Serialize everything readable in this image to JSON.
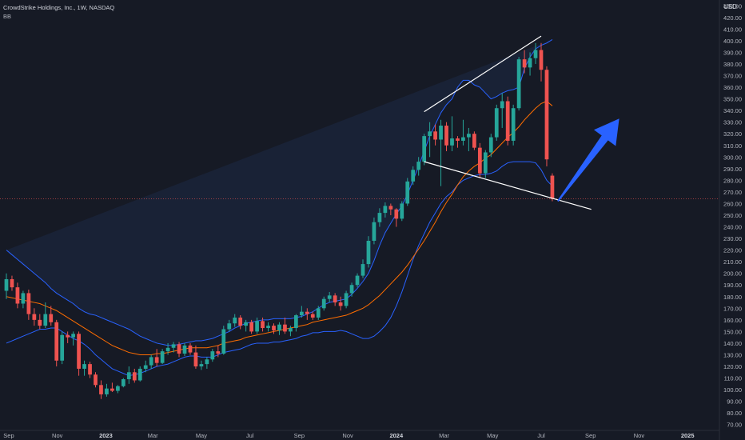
{
  "header": {
    "title": "CrowdStrike Holdings, Inc., 1W, NASDAQ",
    "indicator": "BB",
    "currency": "USD"
  },
  "colors": {
    "background": "#161a25",
    "up": "#26a69a",
    "down": "#ef5350",
    "band": "#2962ff",
    "basis": "#ff6d00",
    "band_fill": "#1e2a45",
    "trendline": "#ffffff",
    "arrow": "#2962ff",
    "price_line": "#ef5350"
  },
  "chart_data": {
    "type": "candlestick",
    "x_range": [
      "2022-08-29",
      "2025-02-10"
    ],
    "y_range": [
      65,
      435
    ],
    "y_ticks": [
      70,
      80,
      90,
      100,
      110,
      120,
      130,
      140,
      150,
      160,
      170,
      180,
      190,
      200,
      210,
      220,
      230,
      240,
      250,
      260,
      270,
      280,
      290,
      300,
      310,
      320,
      330,
      340,
      350,
      360,
      370,
      380,
      390,
      400,
      410,
      420,
      430
    ],
    "y_tick_labels": [
      "70.00",
      "80.00",
      "90.00",
      "100.00",
      "110.00",
      "120.00",
      "130.00",
      "140.00",
      "150.00",
      "160.00",
      "170.00",
      "180.00",
      "190.00",
      "200.00",
      "210.00",
      "220.00",
      "230.00",
      "240.00",
      "250.00",
      "260.00",
      "270.00",
      "280.00",
      "290.00",
      "300.00",
      "310.00",
      "320.00",
      "330.00",
      "340.00",
      "350.00",
      "360.00",
      "370.00",
      "380.00",
      "390.00",
      "400.00",
      "410.00",
      "420.00",
      "430.00"
    ],
    "x_ticks": [
      {
        "date": "2022-09-01",
        "label": "Sep",
        "bold": false
      },
      {
        "date": "2022-11-01",
        "label": "Nov",
        "bold": false
      },
      {
        "date": "2023-01-01",
        "label": "2023",
        "bold": true
      },
      {
        "date": "2023-03-01",
        "label": "Mar",
        "bold": false
      },
      {
        "date": "2023-05-01",
        "label": "May",
        "bold": false
      },
      {
        "date": "2023-07-01",
        "label": "Jul",
        "bold": false
      },
      {
        "date": "2023-09-01",
        "label": "Sep",
        "bold": false
      },
      {
        "date": "2023-11-01",
        "label": "Nov",
        "bold": false
      },
      {
        "date": "2024-01-01",
        "label": "2024",
        "bold": true
      },
      {
        "date": "2024-03-01",
        "label": "Mar",
        "bold": false
      },
      {
        "date": "2024-05-01",
        "label": "May",
        "bold": false
      },
      {
        "date": "2024-07-01",
        "label": "Jul",
        "bold": false
      },
      {
        "date": "2024-09-01",
        "label": "Sep",
        "bold": false
      },
      {
        "date": "2024-11-01",
        "label": "Nov",
        "bold": false
      },
      {
        "date": "2025-01-01",
        "label": "2025",
        "bold": true
      }
    ],
    "price_line": 264,
    "candles": [
      {
        "d": "2022-08-29",
        "o": 185,
        "h": 200,
        "l": 178,
        "c": 195
      },
      {
        "d": "2022-09-05",
        "o": 195,
        "h": 198,
        "l": 185,
        "c": 188
      },
      {
        "d": "2022-09-12",
        "o": 188,
        "h": 192,
        "l": 170,
        "c": 174
      },
      {
        "d": "2022-09-19",
        "o": 174,
        "h": 185,
        "l": 170,
        "c": 183
      },
      {
        "d": "2022-09-26",
        "o": 183,
        "h": 186,
        "l": 160,
        "c": 165
      },
      {
        "d": "2022-10-03",
        "o": 165,
        "h": 170,
        "l": 155,
        "c": 160
      },
      {
        "d": "2022-10-10",
        "o": 160,
        "h": 165,
        "l": 152,
        "c": 155
      },
      {
        "d": "2022-10-17",
        "o": 155,
        "h": 175,
        "l": 153,
        "c": 165
      },
      {
        "d": "2022-10-24",
        "o": 165,
        "h": 172,
        "l": 155,
        "c": 158
      },
      {
        "d": "2022-10-31",
        "o": 158,
        "h": 160,
        "l": 120,
        "c": 125
      },
      {
        "d": "2022-11-07",
        "o": 125,
        "h": 150,
        "l": 122,
        "c": 147
      },
      {
        "d": "2022-11-14",
        "o": 147,
        "h": 150,
        "l": 140,
        "c": 145
      },
      {
        "d": "2022-11-21",
        "o": 145,
        "h": 150,
        "l": 138,
        "c": 148
      },
      {
        "d": "2022-11-28",
        "o": 148,
        "h": 150,
        "l": 112,
        "c": 118
      },
      {
        "d": "2022-12-05",
        "o": 118,
        "h": 125,
        "l": 112,
        "c": 122
      },
      {
        "d": "2022-12-12",
        "o": 122,
        "h": 124,
        "l": 110,
        "c": 113
      },
      {
        "d": "2022-12-19",
        "o": 113,
        "h": 115,
        "l": 102,
        "c": 104
      },
      {
        "d": "2022-12-26",
        "o": 104,
        "h": 108,
        "l": 92,
        "c": 96
      },
      {
        "d": "2023-01-02",
        "o": 96,
        "h": 105,
        "l": 94,
        "c": 101
      },
      {
        "d": "2023-01-09",
        "o": 101,
        "h": 106,
        "l": 98,
        "c": 99
      },
      {
        "d": "2023-01-16",
        "o": 99,
        "h": 104,
        "l": 97,
        "c": 103
      },
      {
        "d": "2023-01-23",
        "o": 103,
        "h": 110,
        "l": 102,
        "c": 109
      },
      {
        "d": "2023-01-30",
        "o": 109,
        "h": 120,
        "l": 105,
        "c": 115
      },
      {
        "d": "2023-02-06",
        "o": 115,
        "h": 118,
        "l": 106,
        "c": 108
      },
      {
        "d": "2023-02-13",
        "o": 108,
        "h": 120,
        "l": 107,
        "c": 118
      },
      {
        "d": "2023-02-20",
        "o": 118,
        "h": 125,
        "l": 115,
        "c": 121
      },
      {
        "d": "2023-02-27",
        "o": 121,
        "h": 130,
        "l": 118,
        "c": 128
      },
      {
        "d": "2023-03-06",
        "o": 128,
        "h": 135,
        "l": 120,
        "c": 123
      },
      {
        "d": "2023-03-13",
        "o": 123,
        "h": 135,
        "l": 122,
        "c": 133
      },
      {
        "d": "2023-03-20",
        "o": 133,
        "h": 140,
        "l": 130,
        "c": 136
      },
      {
        "d": "2023-03-27",
        "o": 136,
        "h": 141,
        "l": 132,
        "c": 139
      },
      {
        "d": "2023-04-03",
        "o": 139,
        "h": 141,
        "l": 128,
        "c": 131
      },
      {
        "d": "2023-04-10",
        "o": 131,
        "h": 140,
        "l": 129,
        "c": 138
      },
      {
        "d": "2023-04-17",
        "o": 138,
        "h": 140,
        "l": 130,
        "c": 132
      },
      {
        "d": "2023-04-24",
        "o": 132,
        "h": 138,
        "l": 118,
        "c": 120
      },
      {
        "d": "2023-05-01",
        "o": 120,
        "h": 125,
        "l": 117,
        "c": 122
      },
      {
        "d": "2023-05-08",
        "o": 122,
        "h": 128,
        "l": 118,
        "c": 126
      },
      {
        "d": "2023-05-15",
        "o": 126,
        "h": 135,
        "l": 124,
        "c": 133
      },
      {
        "d": "2023-05-22",
        "o": 133,
        "h": 138,
        "l": 128,
        "c": 131
      },
      {
        "d": "2023-05-29",
        "o": 131,
        "h": 155,
        "l": 130,
        "c": 152
      },
      {
        "d": "2023-06-05",
        "o": 152,
        "h": 160,
        "l": 150,
        "c": 157
      },
      {
        "d": "2023-06-12",
        "o": 157,
        "h": 165,
        "l": 154,
        "c": 162
      },
      {
        "d": "2023-06-19",
        "o": 162,
        "h": 164,
        "l": 152,
        "c": 155
      },
      {
        "d": "2023-06-26",
        "o": 155,
        "h": 160,
        "l": 150,
        "c": 158
      },
      {
        "d": "2023-07-03",
        "o": 158,
        "h": 160,
        "l": 148,
        "c": 150
      },
      {
        "d": "2023-07-10",
        "o": 150,
        "h": 162,
        "l": 148,
        "c": 159
      },
      {
        "d": "2023-07-17",
        "o": 159,
        "h": 162,
        "l": 150,
        "c": 153
      },
      {
        "d": "2023-07-24",
        "o": 153,
        "h": 158,
        "l": 150,
        "c": 155
      },
      {
        "d": "2023-07-31",
        "o": 155,
        "h": 157,
        "l": 148,
        "c": 151
      },
      {
        "d": "2023-08-07",
        "o": 151,
        "h": 158,
        "l": 147,
        "c": 156
      },
      {
        "d": "2023-08-14",
        "o": 156,
        "h": 162,
        "l": 148,
        "c": 150
      },
      {
        "d": "2023-08-21",
        "o": 150,
        "h": 155,
        "l": 146,
        "c": 153
      },
      {
        "d": "2023-08-28",
        "o": 153,
        "h": 165,
        "l": 150,
        "c": 164
      },
      {
        "d": "2023-09-04",
        "o": 164,
        "h": 172,
        "l": 162,
        "c": 167
      },
      {
        "d": "2023-09-11",
        "o": 167,
        "h": 170,
        "l": 160,
        "c": 165
      },
      {
        "d": "2023-09-18",
        "o": 165,
        "h": 167,
        "l": 160,
        "c": 162
      },
      {
        "d": "2023-09-25",
        "o": 162,
        "h": 172,
        "l": 160,
        "c": 170
      },
      {
        "d": "2023-10-02",
        "o": 170,
        "h": 180,
        "l": 168,
        "c": 178
      },
      {
        "d": "2023-10-09",
        "o": 178,
        "h": 184,
        "l": 175,
        "c": 181
      },
      {
        "d": "2023-10-16",
        "o": 181,
        "h": 183,
        "l": 172,
        "c": 175
      },
      {
        "d": "2023-10-23",
        "o": 175,
        "h": 180,
        "l": 168,
        "c": 172
      },
      {
        "d": "2023-10-30",
        "o": 172,
        "h": 185,
        "l": 170,
        "c": 183
      },
      {
        "d": "2023-11-06",
        "o": 183,
        "h": 192,
        "l": 180,
        "c": 190
      },
      {
        "d": "2023-11-13",
        "o": 190,
        "h": 200,
        "l": 188,
        "c": 198
      },
      {
        "d": "2023-11-20",
        "o": 198,
        "h": 212,
        "l": 196,
        "c": 208
      },
      {
        "d": "2023-11-27",
        "o": 208,
        "h": 232,
        "l": 205,
        "c": 228
      },
      {
        "d": "2023-12-04",
        "o": 228,
        "h": 248,
        "l": 225,
        "c": 244
      },
      {
        "d": "2023-12-11",
        "o": 244,
        "h": 256,
        "l": 240,
        "c": 252
      },
      {
        "d": "2023-12-18",
        "o": 252,
        "h": 261,
        "l": 248,
        "c": 258
      },
      {
        "d": "2023-12-25",
        "o": 258,
        "h": 260,
        "l": 250,
        "c": 255
      },
      {
        "d": "2024-01-01",
        "o": 255,
        "h": 256,
        "l": 240,
        "c": 247
      },
      {
        "d": "2024-01-08",
        "o": 247,
        "h": 262,
        "l": 245,
        "c": 260
      },
      {
        "d": "2024-01-15",
        "o": 260,
        "h": 282,
        "l": 258,
        "c": 279
      },
      {
        "d": "2024-01-22",
        "o": 279,
        "h": 292,
        "l": 276,
        "c": 289
      },
      {
        "d": "2024-01-29",
        "o": 289,
        "h": 300,
        "l": 284,
        "c": 296
      },
      {
        "d": "2024-02-05",
        "o": 296,
        "h": 320,
        "l": 293,
        "c": 318
      },
      {
        "d": "2024-02-12",
        "o": 318,
        "h": 330,
        "l": 300,
        "c": 322
      },
      {
        "d": "2024-02-19",
        "o": 322,
        "h": 328,
        "l": 310,
        "c": 315
      },
      {
        "d": "2024-02-26",
        "o": 315,
        "h": 332,
        "l": 275,
        "c": 327
      },
      {
        "d": "2024-03-04",
        "o": 327,
        "h": 330,
        "l": 305,
        "c": 310
      },
      {
        "d": "2024-03-11",
        "o": 310,
        "h": 335,
        "l": 305,
        "c": 316
      },
      {
        "d": "2024-03-18",
        "o": 316,
        "h": 318,
        "l": 308,
        "c": 314
      },
      {
        "d": "2024-03-25",
        "o": 314,
        "h": 332,
        "l": 310,
        "c": 317
      },
      {
        "d": "2024-04-01",
        "o": 317,
        "h": 325,
        "l": 305,
        "c": 320
      },
      {
        "d": "2024-04-08",
        "o": 320,
        "h": 322,
        "l": 306,
        "c": 308
      },
      {
        "d": "2024-04-15",
        "o": 308,
        "h": 312,
        "l": 282,
        "c": 286
      },
      {
        "d": "2024-04-22",
        "o": 286,
        "h": 306,
        "l": 282,
        "c": 304
      },
      {
        "d": "2024-04-29",
        "o": 304,
        "h": 320,
        "l": 300,
        "c": 317
      },
      {
        "d": "2024-05-06",
        "o": 317,
        "h": 345,
        "l": 314,
        "c": 342
      },
      {
        "d": "2024-05-13",
        "o": 342,
        "h": 355,
        "l": 325,
        "c": 348
      },
      {
        "d": "2024-05-20",
        "o": 348,
        "h": 352,
        "l": 310,
        "c": 314
      },
      {
        "d": "2024-05-27",
        "o": 314,
        "h": 345,
        "l": 310,
        "c": 342
      },
      {
        "d": "2024-06-03",
        "o": 342,
        "h": 386,
        "l": 340,
        "c": 384
      },
      {
        "d": "2024-06-10",
        "o": 384,
        "h": 392,
        "l": 372,
        "c": 377
      },
      {
        "d": "2024-06-17",
        "o": 377,
        "h": 390,
        "l": 370,
        "c": 385
      },
      {
        "d": "2024-06-24",
        "o": 385,
        "h": 398,
        "l": 380,
        "c": 392
      },
      {
        "d": "2024-07-01",
        "o": 392,
        "h": 398,
        "l": 365,
        "c": 375
      },
      {
        "d": "2024-07-08",
        "o": 375,
        "h": 378,
        "l": 292,
        "c": 298
      },
      {
        "d": "2024-07-15",
        "o": 284,
        "h": 286,
        "l": 262,
        "c": 264
      }
    ],
    "bb_upper": [
      220,
      216,
      212,
      208,
      204,
      200,
      196,
      192,
      187,
      183,
      180,
      177,
      174,
      170,
      167,
      165,
      164,
      162,
      160,
      158,
      156,
      154,
      152,
      149,
      146,
      144,
      142,
      140,
      139,
      138,
      138,
      139,
      140,
      141,
      142,
      142,
      143,
      144,
      146,
      148,
      150,
      153,
      155,
      157,
      158,
      159,
      160,
      160,
      161,
      161,
      161,
      161,
      162,
      163,
      165,
      167,
      170,
      173,
      175,
      176,
      177,
      178,
      182,
      187,
      193,
      200,
      211,
      224,
      235,
      243,
      251,
      258,
      268,
      280,
      292,
      305,
      318,
      328,
      338,
      345,
      350,
      360,
      366,
      366,
      362,
      360,
      355,
      350,
      352,
      355,
      357,
      358,
      360,
      376,
      386,
      393,
      396,
      398,
      401,
      405,
      406
    ],
    "bb_basis": [
      180,
      179,
      178,
      177,
      176,
      175,
      174,
      172,
      170,
      168,
      165,
      162,
      159,
      156,
      153,
      150,
      147,
      144,
      141,
      138,
      136,
      134,
      132,
      131,
      130,
      130,
      130,
      131,
      131,
      132,
      133,
      134,
      135,
      136,
      136,
      136,
      136,
      137,
      138,
      140,
      141,
      142,
      143,
      145,
      146,
      147,
      148,
      149,
      150,
      151,
      152,
      153,
      154,
      155,
      156,
      158,
      159,
      160,
      161,
      162,
      163,
      164,
      166,
      168,
      170,
      173,
      177,
      181,
      186,
      191,
      196,
      201,
      207,
      214,
      221,
      228,
      236,
      244,
      253,
      261,
      268,
      276,
      283,
      288,
      292,
      295,
      299,
      302,
      307,
      312,
      317,
      321,
      326,
      332,
      337,
      342,
      346,
      348,
      344,
      340,
      337
    ],
    "bb_lower": [
      140,
      142,
      144,
      146,
      148,
      150,
      152,
      152,
      153,
      153,
      150,
      147,
      144,
      142,
      139,
      135,
      130,
      126,
      122,
      118,
      116,
      114,
      112,
      113,
      114,
      116,
      118,
      120,
      121,
      122,
      124,
      126,
      128,
      129,
      129,
      128,
      128,
      128,
      130,
      132,
      133,
      134,
      135,
      137,
      139,
      140,
      140,
      140,
      141,
      141,
      142,
      143,
      144,
      146,
      147,
      149,
      149,
      150,
      150,
      150,
      151,
      150,
      148,
      146,
      144,
      144,
      146,
      150,
      155,
      162,
      172,
      184,
      198,
      212,
      224,
      234,
      244,
      252,
      260,
      266,
      270,
      276,
      280,
      282,
      284,
      285,
      285,
      286,
      288,
      292,
      295,
      296,
      296,
      296,
      296,
      295,
      289,
      280,
      275,
      270,
      268
    ],
    "annotations": [
      {
        "type": "trendline",
        "from": [
          "2024-02-05",
          339
        ],
        "to": [
          "2024-07-01",
          404
        ]
      },
      {
        "type": "trendline",
        "from": [
          "2024-02-05",
          296
        ],
        "to": [
          "2024-09-02",
          255
        ]
      },
      {
        "type": "arrow",
        "from": [
          "2024-07-22",
          262
        ],
        "to": [
          "2024-10-07",
          333
        ]
      }
    ]
  }
}
